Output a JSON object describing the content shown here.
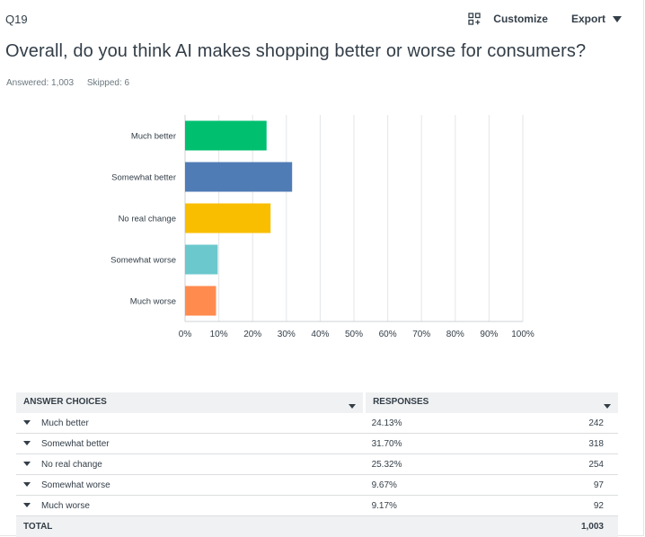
{
  "question": {
    "number": "Q19",
    "title": "Overall, do you think AI makes shopping better or worse for consumers?",
    "answered": "Answered: 1,003",
    "skipped": "Skipped: 6"
  },
  "toolbar": {
    "customize_label": "Customize",
    "export_label": "Export",
    "customize_icon": "grid-plus-icon",
    "export_icon": "caret-down-icon"
  },
  "colors": {
    "much_better": "#00bf6f",
    "somewhat_better": "#507cb6",
    "no_real_change": "#f9be00",
    "somewhat_worse": "#6bc8cd",
    "much_worse": "#ff8b4f",
    "grid": "#e3e5e7",
    "text": "#333e48"
  },
  "chart_data": {
    "type": "bar",
    "orientation": "horizontal",
    "categories": [
      "Much better",
      "Somewhat better",
      "No real change",
      "Somewhat worse",
      "Much worse"
    ],
    "values": [
      24.13,
      31.7,
      25.32,
      9.67,
      9.17
    ],
    "xlim": [
      0,
      100
    ],
    "x_ticks": [
      "0%",
      "10%",
      "20%",
      "30%",
      "40%",
      "50%",
      "60%",
      "70%",
      "80%",
      "90%",
      "100%"
    ],
    "grid": true
  },
  "table": {
    "headers": {
      "choices": "ANSWER CHOICES",
      "responses": "RESPONSES"
    },
    "rows": [
      {
        "choice": "Much better",
        "percent": "24.13%",
        "count": "242"
      },
      {
        "choice": "Somewhat better",
        "percent": "31.70%",
        "count": "318"
      },
      {
        "choice": "No real change",
        "percent": "25.32%",
        "count": "254"
      },
      {
        "choice": "Somewhat worse",
        "percent": "9.67%",
        "count": "97"
      },
      {
        "choice": "Much worse",
        "percent": "9.17%",
        "count": "92"
      }
    ],
    "total": {
      "label": "TOTAL",
      "count": "1,003"
    }
  }
}
